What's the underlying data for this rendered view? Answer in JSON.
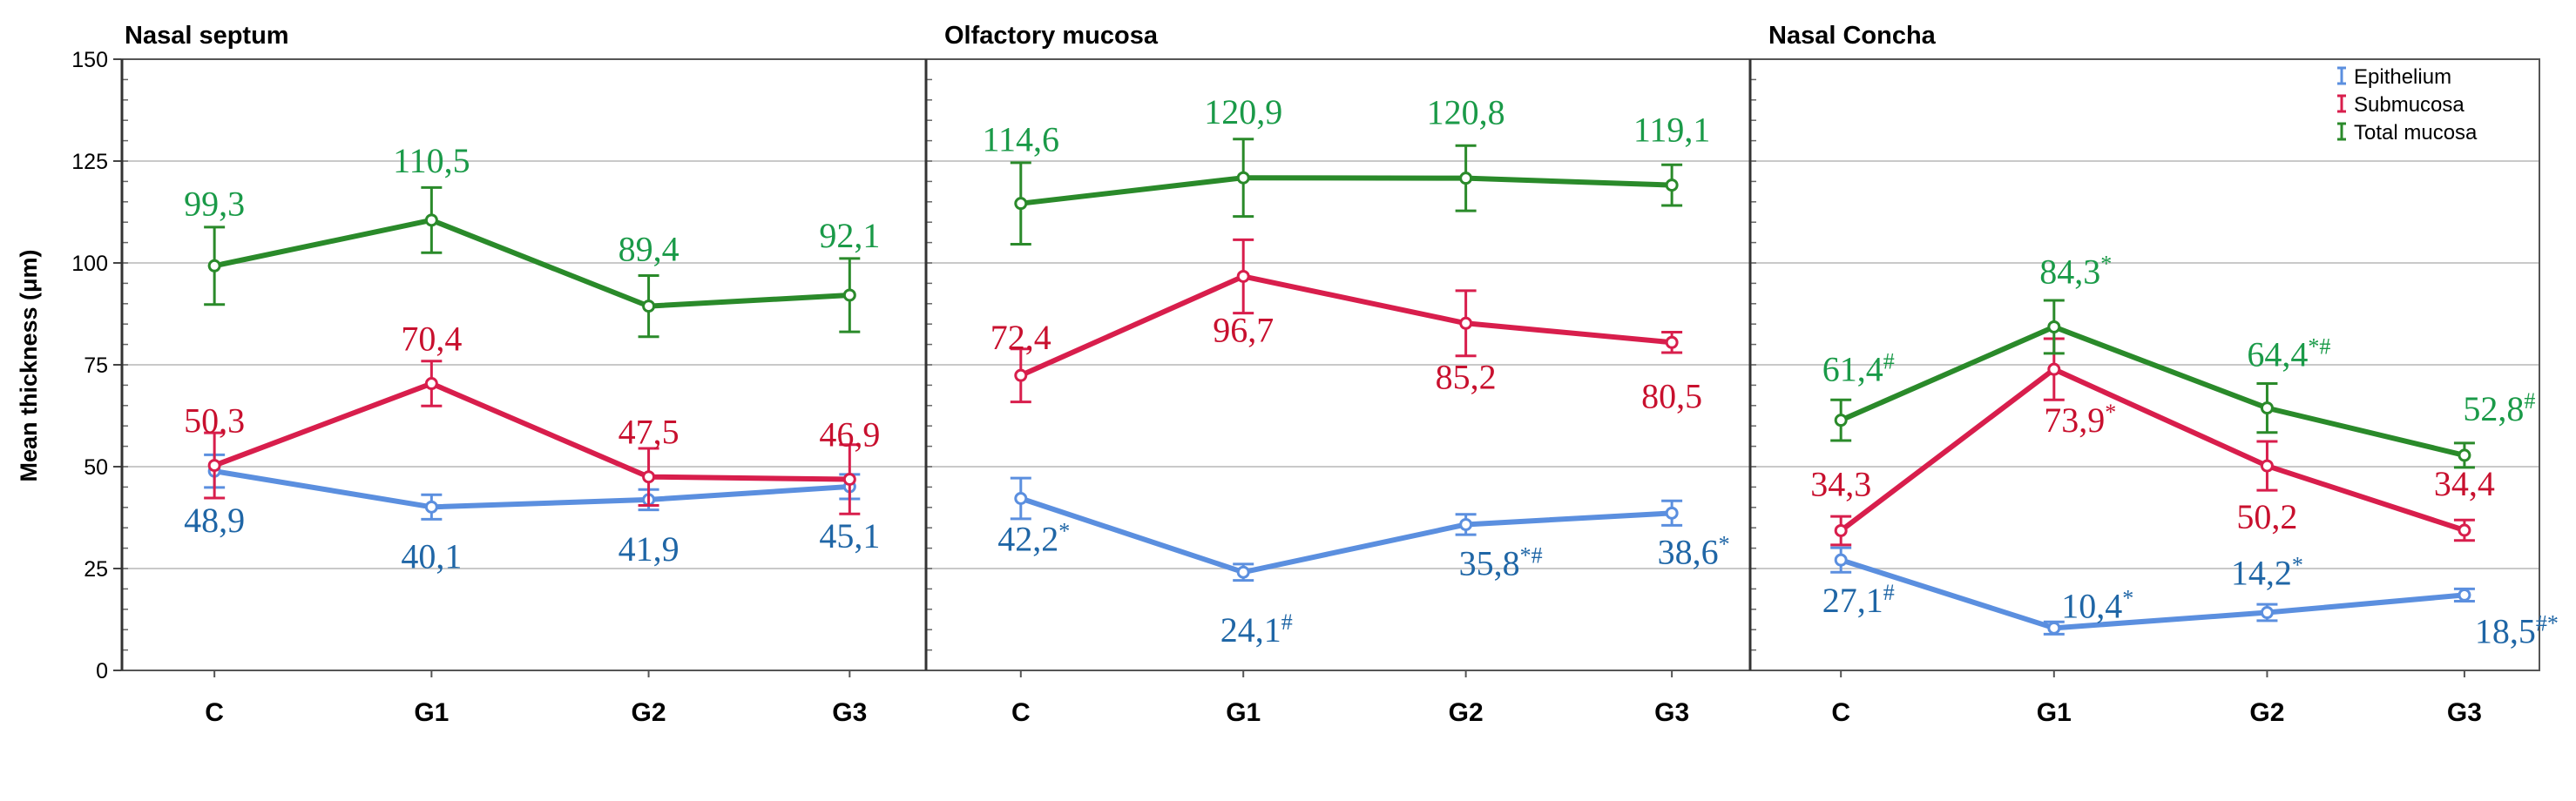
{
  "chart_data": {
    "type": "line",
    "ylabel": "Mean thickness (μm)",
    "ylim": [
      0,
      150
    ],
    "yticks": [
      "0",
      "25",
      "50",
      "75",
      "100",
      "125",
      "150"
    ],
    "categories": [
      "C",
      "G1",
      "G2",
      "G3"
    ],
    "grid": "horizontal",
    "legend_position": "top-right",
    "legend": [
      {
        "name": "Epithelium",
        "color": "#5b8fdf"
      },
      {
        "name": "Submucosa",
        "color": "#d81e4c"
      },
      {
        "name": "Total mucosa",
        "color": "#2a8a2a"
      }
    ],
    "label_colors": {
      "Epithelium": "#1f66a6",
      "Submucosa": "#c8102e",
      "Total mucosa": "#1a9a48"
    },
    "panels": [
      {
        "title": "Nasal septum",
        "series": [
          {
            "name": "Epithelium",
            "values": [
              48.9,
              40.1,
              41.9,
              45.1
            ],
            "err": [
              4,
              3,
              2.5,
              3
            ],
            "labels": [
              {
                "text": "48,9",
                "mark": ""
              },
              {
                "text": "40,1",
                "mark": ""
              },
              {
                "text": "41,9",
                "mark": ""
              },
              {
                "text": "45,1",
                "mark": ""
              }
            ]
          },
          {
            "name": "Submucosa",
            "values": [
              50.3,
              70.4,
              47.5,
              46.9
            ],
            "err": [
              8,
              5.5,
              7,
              8.5
            ],
            "labels": [
              {
                "text": "50,3",
                "mark": ""
              },
              {
                "text": "70,4",
                "mark": ""
              },
              {
                "text": "47,5",
                "mark": ""
              },
              {
                "text": "46,9",
                "mark": ""
              }
            ]
          },
          {
            "name": "Total mucosa",
            "values": [
              99.3,
              110.5,
              89.4,
              92.1
            ],
            "err": [
              9.5,
              8,
              7.5,
              9
            ],
            "labels": [
              {
                "text": "99,3",
                "mark": ""
              },
              {
                "text": "110,5",
                "mark": ""
              },
              {
                "text": "89,4",
                "mark": ""
              },
              {
                "text": "92,1",
                "mark": ""
              }
            ]
          }
        ]
      },
      {
        "title": "Olfactory mucosa",
        "series": [
          {
            "name": "Epithelium",
            "values": [
              42.2,
              24.1,
              35.8,
              38.6
            ],
            "err": [
              5,
              2,
              2.5,
              3
            ],
            "labels": [
              {
                "text": "42,2",
                "mark": "*"
              },
              {
                "text": "24,1",
                "mark": "#"
              },
              {
                "text": "35,8",
                "mark": "*#"
              },
              {
                "text": "38,6",
                "mark": "*"
              }
            ]
          },
          {
            "name": "Submucosa",
            "values": [
              72.4,
              96.7,
              85.2,
              80.5
            ],
            "err": [
              6.5,
              9,
              8,
              2.5
            ],
            "labels": [
              {
                "text": "72,4",
                "mark": ""
              },
              {
                "text": "96,7",
                "mark": ""
              },
              {
                "text": "85,2",
                "mark": ""
              },
              {
                "text": "80,5",
                "mark": ""
              }
            ]
          },
          {
            "name": "Total mucosa",
            "values": [
              114.6,
              120.9,
              120.8,
              119.1
            ],
            "err": [
              10,
              9.5,
              8,
              5
            ],
            "labels": [
              {
                "text": "114,6",
                "mark": ""
              },
              {
                "text": "120,9",
                "mark": ""
              },
              {
                "text": "120,8",
                "mark": ""
              },
              {
                "text": "119,1",
                "mark": ""
              }
            ]
          }
        ]
      },
      {
        "title": "Nasal Concha",
        "series": [
          {
            "name": "Epithelium",
            "values": [
              27.1,
              10.4,
              14.2,
              18.5
            ],
            "err": [
              3,
              1.5,
              2,
              1.5
            ],
            "labels": [
              {
                "text": "27,1",
                "mark": "#"
              },
              {
                "text": "10,4",
                "mark": "*"
              },
              {
                "text": "14,2",
                "mark": "*"
              },
              {
                "text": "18,5",
                "mark": "#*"
              }
            ]
          },
          {
            "name": "Submucosa",
            "values": [
              34.3,
              73.9,
              50.2,
              34.4
            ],
            "err": [
              3.5,
              7.5,
              6,
              2.5
            ],
            "labels": [
              {
                "text": "34,3",
                "mark": ""
              },
              {
                "text": "73,9",
                "mark": "*"
              },
              {
                "text": "50,2",
                "mark": ""
              },
              {
                "text": "34,4",
                "mark": ""
              }
            ]
          },
          {
            "name": "Total mucosa",
            "values": [
              61.4,
              84.3,
              64.4,
              52.8
            ],
            "err": [
              5,
              6.5,
              6,
              3
            ],
            "labels": [
              {
                "text": "61,4",
                "mark": "#"
              },
              {
                "text": "84,3",
                "mark": "*"
              },
              {
                "text": "64,4",
                "mark": "*#"
              },
              {
                "text": "52,8",
                "mark": "#"
              }
            ]
          }
        ]
      }
    ]
  }
}
